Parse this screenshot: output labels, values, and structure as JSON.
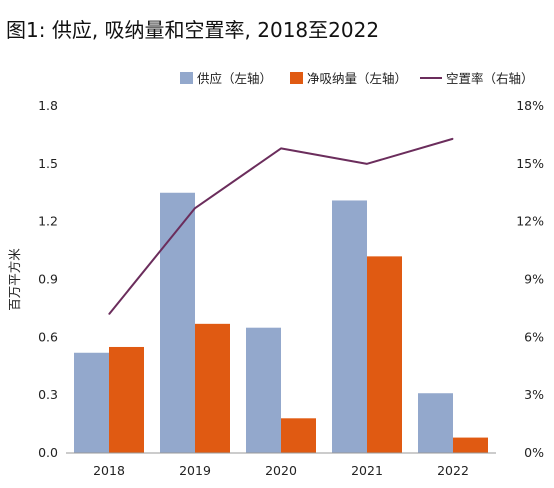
{
  "title": "图1: 供应, 吸纳量和空置率, 2018至2022",
  "chart_data": {
    "type": "bar",
    "title": "图1: 供应, 吸纳量和空置率, 2018至2022",
    "categories": [
      "2018",
      "2019",
      "2020",
      "2021",
      "2022"
    ],
    "series": [
      {
        "name": "供应（左轴）",
        "type": "bar",
        "axis": "left",
        "color": "#93A8CC",
        "values": [
          0.52,
          1.35,
          0.65,
          1.31,
          0.31
        ]
      },
      {
        "name": "净吸纳量（左轴）",
        "type": "bar",
        "axis": "left",
        "color": "#E05A12",
        "values": [
          0.55,
          0.67,
          0.18,
          1.02,
          0.08
        ]
      },
      {
        "name": "空置率（右轴）",
        "type": "line",
        "axis": "right",
        "color": "#6B2D5C",
        "values": [
          7.2,
          12.7,
          15.8,
          15.0,
          16.3
        ]
      }
    ],
    "ylabel": "百万平方米",
    "ylim": [
      0,
      1.8
    ],
    "y_ticks": [
      "0.0",
      "0.3",
      "0.6",
      "0.9",
      "1.2",
      "1.5",
      "1.8"
    ],
    "y2lim": [
      0,
      18
    ],
    "y2_ticks": [
      "0%",
      "3%",
      "6%",
      "9%",
      "12%",
      "15%",
      "18%"
    ],
    "legend": "top-right",
    "grid": false
  }
}
